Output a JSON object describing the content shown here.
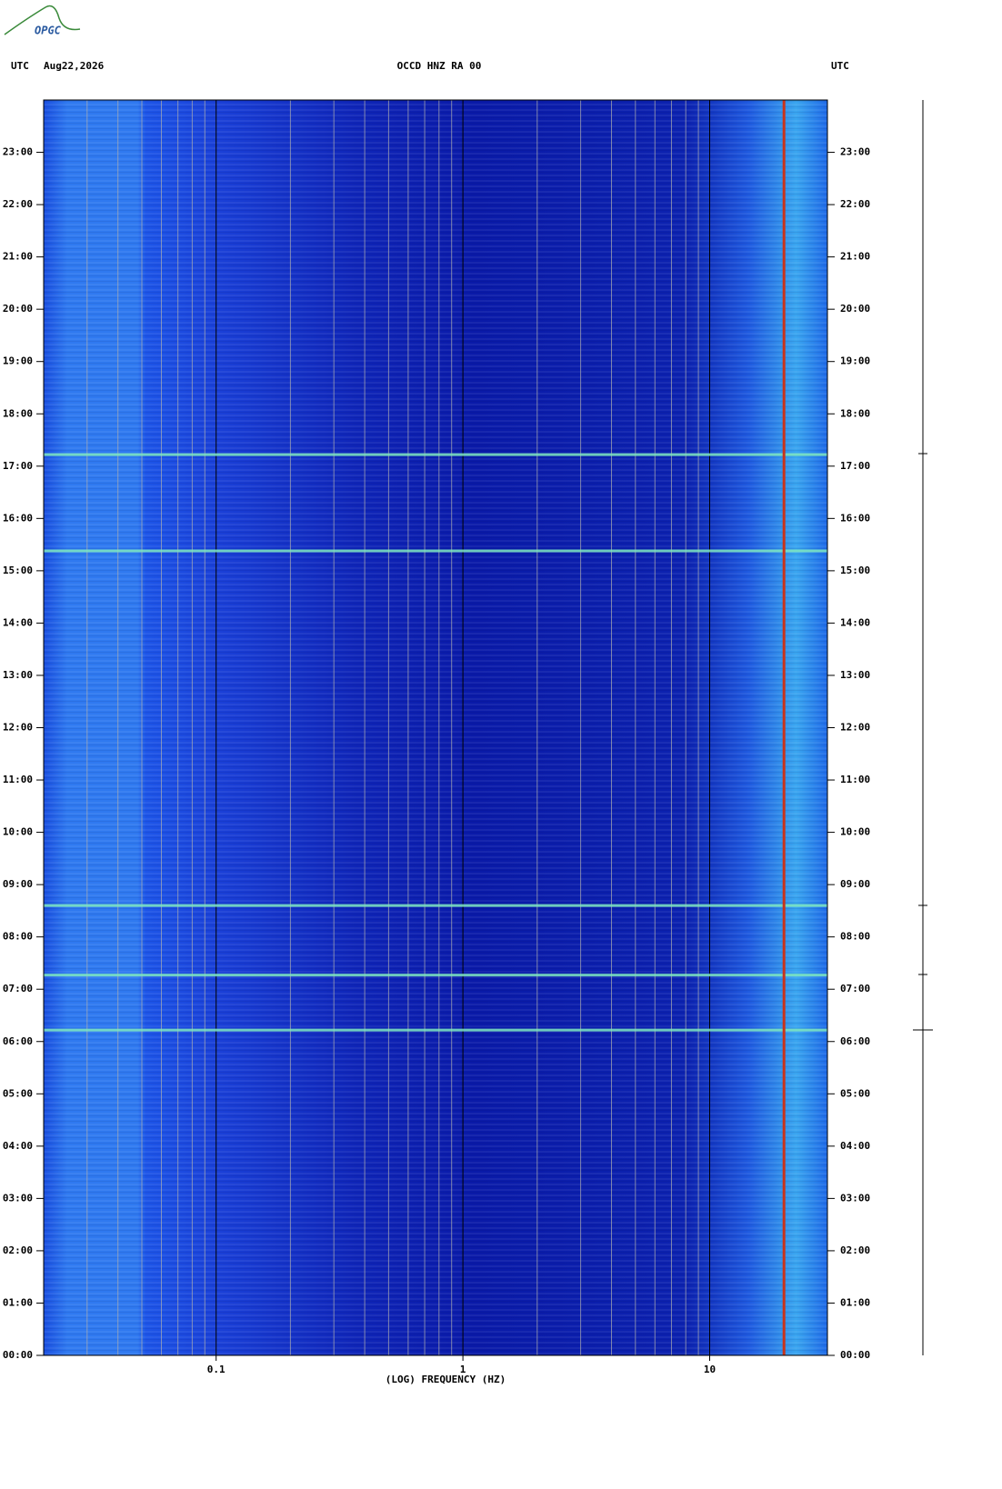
{
  "chart_data": {
    "type": "spectrogram",
    "logo": "OPGC",
    "left_header": "UTC",
    "date": "Aug22,2026",
    "title": "OCCD HNZ RA 00",
    "right_header": "UTC",
    "xlabel": "(LOG) FREQUENCY (HZ)",
    "xscale": "log",
    "xlim": [
      0.02,
      30
    ],
    "xticks": [
      0.1,
      1,
      10
    ],
    "xminorticks": [
      0.03,
      0.04,
      0.05,
      0.06,
      0.07,
      0.08,
      0.09,
      0.2,
      0.3,
      0.4,
      0.5,
      0.6,
      0.7,
      0.8,
      0.9,
      2,
      3,
      4,
      5,
      6,
      7,
      8,
      9,
      20,
      30
    ],
    "ylim": [
      0,
      24
    ],
    "yticks": [
      {
        "value": 0,
        "label": "00:00"
      },
      {
        "value": 1,
        "label": "01:00"
      },
      {
        "value": 2,
        "label": "02:00"
      },
      {
        "value": 3,
        "label": "03:00"
      },
      {
        "value": 4,
        "label": "04:00"
      },
      {
        "value": 5,
        "label": "05:00"
      },
      {
        "value": 6,
        "label": "06:00"
      },
      {
        "value": 7,
        "label": "07:00"
      },
      {
        "value": 8,
        "label": "08:00"
      },
      {
        "value": 9,
        "label": "09:00"
      },
      {
        "value": 10,
        "label": "10:00"
      },
      {
        "value": 11,
        "label": "11:00"
      },
      {
        "value": 12,
        "label": "12:00"
      },
      {
        "value": 13,
        "label": "13:00"
      },
      {
        "value": 14,
        "label": "14:00"
      },
      {
        "value": 15,
        "label": "15:00"
      },
      {
        "value": 16,
        "label": "16:00"
      },
      {
        "value": 17,
        "label": "17:00"
      },
      {
        "value": 18,
        "label": "18:00"
      },
      {
        "value": 19,
        "label": "19:00"
      },
      {
        "value": 20,
        "label": "20:00"
      },
      {
        "value": 21,
        "label": "21:00"
      },
      {
        "value": 22,
        "label": "22:00"
      },
      {
        "value": 23,
        "label": "23:00"
      }
    ],
    "events": [
      6.22,
      7.27,
      8.6,
      15.38,
      17.22
    ],
    "event_color": "#7fe8c0",
    "tones": [
      20
    ],
    "tone_color": "#c8341c"
  }
}
